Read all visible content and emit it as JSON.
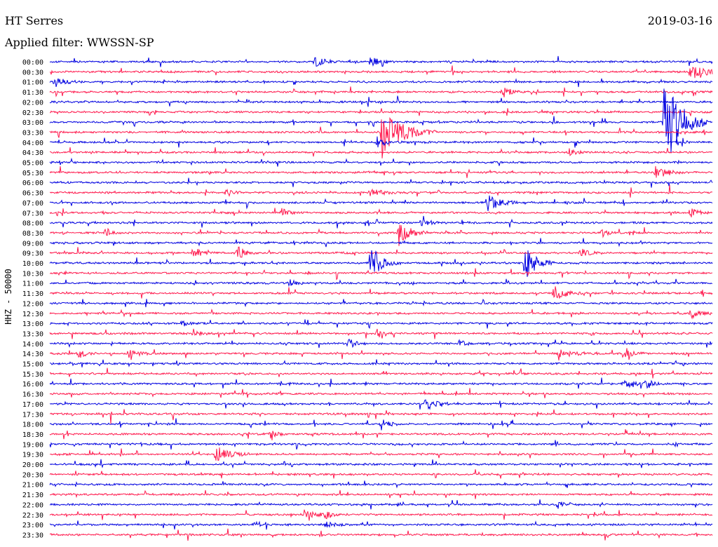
{
  "header": {
    "station": "HT Serres",
    "date": "2019-03-16",
    "filter": "Applied filter: WWSSN-SP"
  },
  "chart_data": {
    "type": "line",
    "title": "HT Serres",
    "date": "2019-03-16",
    "ylabel": "HHZ - 50000",
    "row_labels": [
      "00:00",
      "00:30",
      "01:00",
      "01:30",
      "02:00",
      "02:30",
      "03:00",
      "03:30",
      "04:00",
      "04:30",
      "05:00",
      "05:30",
      "06:00",
      "06:30",
      "07:00",
      "07:30",
      "08:00",
      "08:30",
      "09:00",
      "09:30",
      "10:00",
      "10:30",
      "11:00",
      "11:30",
      "12:00",
      "12:30",
      "13:00",
      "13:30",
      "14:00",
      "14:30",
      "15:00",
      "15:30",
      "16:00",
      "16:30",
      "17:00",
      "17:30",
      "18:00",
      "18:30",
      "19:00",
      "19:30",
      "20:00",
      "20:30",
      "21:00",
      "21:30",
      "22:00",
      "22:30",
      "23:00",
      "23:30"
    ],
    "series_colors": [
      "#0000e0",
      "#ff1a4e"
    ],
    "color_rule": "alternating rows: blue for :00, red for :30",
    "trace_minutes": 30,
    "events": [
      {
        "row": 0,
        "minute": 12.0,
        "amp": 9,
        "dur": 1.2
      },
      {
        "row": 0,
        "minute": 14.5,
        "amp": 8,
        "dur": 1.2
      },
      {
        "row": 1,
        "minute": 29.0,
        "amp": 16,
        "dur": 1.6
      },
      {
        "row": 2,
        "minute": 0.2,
        "amp": 6,
        "dur": 1.5
      },
      {
        "row": 3,
        "minute": 20.5,
        "amp": 8,
        "dur": 1.2
      },
      {
        "row": 6,
        "minute": 27.8,
        "amp": 80,
        "dur": 2.0
      },
      {
        "row": 7,
        "minute": 15.0,
        "amp": 40,
        "dur": 2.5
      },
      {
        "row": 8,
        "minute": 14.8,
        "amp": 8,
        "dur": 1.2
      },
      {
        "row": 9,
        "minute": 23.5,
        "amp": 6,
        "dur": 1.0
      },
      {
        "row": 11,
        "minute": 27.4,
        "amp": 10,
        "dur": 1.6
      },
      {
        "row": 13,
        "minute": 8.0,
        "amp": 7,
        "dur": 0.8
      },
      {
        "row": 13,
        "minute": 14.5,
        "amp": 5,
        "dur": 2.0
      },
      {
        "row": 14,
        "minute": 19.8,
        "amp": 16,
        "dur": 1.4
      },
      {
        "row": 15,
        "minute": 10.5,
        "amp": 7,
        "dur": 1.0
      },
      {
        "row": 15,
        "minute": 29.0,
        "amp": 9,
        "dur": 0.8
      },
      {
        "row": 16,
        "minute": 16.8,
        "amp": 8,
        "dur": 1.0
      },
      {
        "row": 17,
        "minute": 2.5,
        "amp": 8,
        "dur": 0.8
      },
      {
        "row": 17,
        "minute": 15.8,
        "amp": 18,
        "dur": 1.4
      },
      {
        "row": 17,
        "minute": 25.0,
        "amp": 7,
        "dur": 0.8
      },
      {
        "row": 19,
        "minute": 6.5,
        "amp": 9,
        "dur": 1.0
      },
      {
        "row": 19,
        "minute": 8.5,
        "amp": 12,
        "dur": 0.8
      },
      {
        "row": 19,
        "minute": 24.0,
        "amp": 8,
        "dur": 1.0
      },
      {
        "row": 20,
        "minute": 14.5,
        "amp": 28,
        "dur": 1.4
      },
      {
        "row": 20,
        "minute": 21.5,
        "amp": 26,
        "dur": 1.4
      },
      {
        "row": 22,
        "minute": 10.8,
        "amp": 6,
        "dur": 1.0
      },
      {
        "row": 23,
        "minute": 22.8,
        "amp": 14,
        "dur": 1.4
      },
      {
        "row": 25,
        "minute": 29.0,
        "amp": 7,
        "dur": 1.2
      },
      {
        "row": 26,
        "minute": 6.0,
        "amp": 6,
        "dur": 0.8
      },
      {
        "row": 27,
        "minute": 6.5,
        "amp": 7,
        "dur": 1.0
      },
      {
        "row": 27,
        "minute": 14.8,
        "amp": 8,
        "dur": 0.8
      },
      {
        "row": 28,
        "minute": 13.5,
        "amp": 8,
        "dur": 1.0
      },
      {
        "row": 28,
        "minute": 18.5,
        "amp": 6,
        "dur": 0.8
      },
      {
        "row": 29,
        "minute": 1.3,
        "amp": 8,
        "dur": 0.8
      },
      {
        "row": 29,
        "minute": 3.5,
        "amp": 6,
        "dur": 1.5
      },
      {
        "row": 29,
        "minute": 23.0,
        "amp": 6,
        "dur": 2.0
      },
      {
        "row": 29,
        "minute": 26.0,
        "amp": 10,
        "dur": 1.0
      },
      {
        "row": 32,
        "minute": 26.0,
        "amp": 7,
        "dur": 1.2
      },
      {
        "row": 32,
        "minute": 27.0,
        "amp": 8,
        "dur": 0.8
      },
      {
        "row": 34,
        "minute": 17.0,
        "amp": 10,
        "dur": 1.2
      },
      {
        "row": 36,
        "minute": 15.0,
        "amp": 8,
        "dur": 1.0
      },
      {
        "row": 37,
        "minute": 10.0,
        "amp": 7,
        "dur": 0.8
      },
      {
        "row": 39,
        "minute": 7.5,
        "amp": 14,
        "dur": 1.6
      },
      {
        "row": 44,
        "minute": 23.0,
        "amp": 6,
        "dur": 0.8
      },
      {
        "row": 45,
        "minute": 11.5,
        "amp": 9,
        "dur": 1.2
      },
      {
        "row": 45,
        "minute": 12.5,
        "amp": 6,
        "dur": 1.0
      },
      {
        "row": 46,
        "minute": 12.5,
        "amp": 4,
        "dur": 1.5
      }
    ]
  }
}
